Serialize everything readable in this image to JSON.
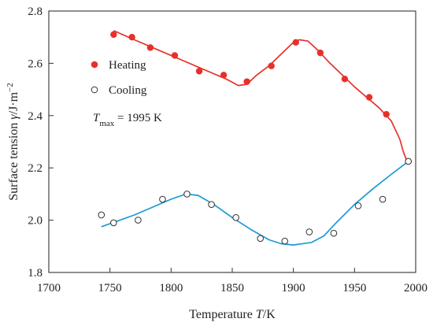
{
  "chart_data": {
    "type": "scatter",
    "xlabel": "Temperature T/K",
    "ylabel": "Surface tension γ/J·m−2",
    "xlim": [
      1700,
      2000
    ],
    "ylim": [
      1.8,
      2.8
    ],
    "x_ticks": [
      1700,
      1750,
      1800,
      1850,
      1900,
      1950,
      2000
    ],
    "y_ticks": [
      1.8,
      2.0,
      2.2,
      2.4,
      2.6,
      2.8
    ],
    "x_tick_labels": [
      "1700",
      "1750",
      "1800",
      "1850",
      "1900",
      "1950",
      "2000"
    ],
    "y_tick_labels": [
      "1.8",
      "2.0",
      "2.2",
      "2.4",
      "2.6",
      "2.8"
    ],
    "grid": false,
    "legend_position": "top-left",
    "annotation": "Tmax = 1995 K",
    "series": [
      {
        "name": "Heating",
        "marker": "filled-circle",
        "color": "#e8302a",
        "points": [
          [
            1753,
            2.71
          ],
          [
            1768,
            2.7
          ],
          [
            1783,
            2.66
          ],
          [
            1803,
            2.63
          ],
          [
            1823,
            2.57
          ],
          [
            1843,
            2.555
          ],
          [
            1862,
            2.53
          ],
          [
            1882,
            2.59
          ],
          [
            1902,
            2.68
          ],
          [
            1922,
            2.64
          ],
          [
            1942,
            2.54
          ],
          [
            1962,
            2.47
          ],
          [
            1976,
            2.405
          ],
          [
            1994,
            2.225
          ]
        ],
        "trend": [
          [
            1753,
            2.725
          ],
          [
            1770,
            2.69
          ],
          [
            1790,
            2.65
          ],
          [
            1810,
            2.61
          ],
          [
            1830,
            2.57
          ],
          [
            1845,
            2.54
          ],
          [
            1855,
            2.515
          ],
          [
            1862,
            2.52
          ],
          [
            1870,
            2.555
          ],
          [
            1880,
            2.59
          ],
          [
            1890,
            2.635
          ],
          [
            1900,
            2.68
          ],
          [
            1905,
            2.69
          ],
          [
            1912,
            2.685
          ],
          [
            1920,
            2.65
          ],
          [
            1930,
            2.6
          ],
          [
            1940,
            2.555
          ],
          [
            1950,
            2.51
          ],
          [
            1960,
            2.47
          ],
          [
            1970,
            2.43
          ],
          [
            1980,
            2.38
          ],
          [
            1987,
            2.31
          ],
          [
            1990,
            2.26
          ],
          [
            1993,
            2.225
          ]
        ]
      },
      {
        "name": "Cooling",
        "marker": "open-circle",
        "color": "#1a9ad6",
        "points": [
          [
            1743,
            2.02
          ],
          [
            1753,
            1.99
          ],
          [
            1773,
            2.0
          ],
          [
            1793,
            2.08
          ],
          [
            1813,
            2.1
          ],
          [
            1833,
            2.06
          ],
          [
            1853,
            2.01
          ],
          [
            1873,
            1.93
          ],
          [
            1893,
            1.92
          ],
          [
            1913,
            1.955
          ],
          [
            1933,
            1.95
          ],
          [
            1953,
            2.055
          ],
          [
            1973,
            2.08
          ],
          [
            1994,
            2.225
          ]
        ],
        "trend": [
          [
            1743,
            1.975
          ],
          [
            1755,
            1.995
          ],
          [
            1770,
            2.02
          ],
          [
            1785,
            2.05
          ],
          [
            1800,
            2.08
          ],
          [
            1812,
            2.1
          ],
          [
            1822,
            2.095
          ],
          [
            1835,
            2.06
          ],
          [
            1850,
            2.01
          ],
          [
            1865,
            1.965
          ],
          [
            1880,
            1.925
          ],
          [
            1890,
            1.91
          ],
          [
            1900,
            1.905
          ],
          [
            1915,
            1.915
          ],
          [
            1925,
            1.94
          ],
          [
            1935,
            1.99
          ],
          [
            1950,
            2.06
          ],
          [
            1965,
            2.12
          ],
          [
            1980,
            2.175
          ],
          [
            1994,
            2.225
          ]
        ]
      }
    ]
  }
}
